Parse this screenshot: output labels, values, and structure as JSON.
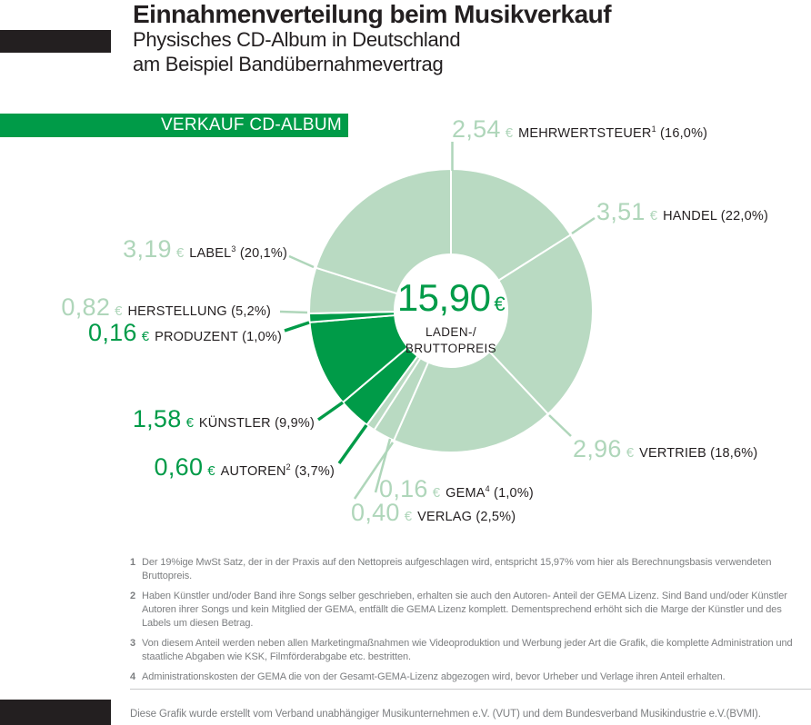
{
  "header": {
    "title": "Einnahmenverteilung beim Musikverkauf",
    "subtitle_line1": "Physisches CD-Album in Deutschland",
    "subtitle_line2": "am Beispiel Bandübernahmevertrag"
  },
  "band": {
    "label": "VERKAUF CD-ALBUM"
  },
  "colors": {
    "dark_green": "#009B48",
    "light_green_fill": "#B9DAC2",
    "light_green_text": "#AFD6BA",
    "text_black": "#231F20",
    "gray_text": "#7C7E80",
    "accent_bar": "#231F20"
  },
  "chart_data": {
    "type": "pie",
    "title": "VERKAUF CD-ALBUM",
    "unit": "€",
    "total_value": "15,90",
    "center": {
      "value": "15,90",
      "currency": "€",
      "label_line1": "LADEN-/",
      "label_line2": "BRUTTOPREIS"
    },
    "segments": [
      {
        "key": "mehrwertsteuer",
        "name": "MEHRWERTSTEUER",
        "footnote_ref": "1",
        "value": "2,54",
        "pct": "16,0%",
        "pct_num": 16.0,
        "shade": "light"
      },
      {
        "key": "handel",
        "name": "HANDEL",
        "footnote_ref": "",
        "value": "3,51",
        "pct": "22,0%",
        "pct_num": 22.0,
        "shade": "light"
      },
      {
        "key": "vertrieb",
        "name": "VERTRIEB",
        "footnote_ref": "",
        "value": "2,96",
        "pct": "18,6%",
        "pct_num": 18.6,
        "shade": "light"
      },
      {
        "key": "verlag",
        "name": "VERLAG",
        "footnote_ref": "",
        "value": "0,40",
        "pct": "2,5%",
        "pct_num": 2.5,
        "shade": "light"
      },
      {
        "key": "gema",
        "name": "GEMA",
        "footnote_ref": "4",
        "value": "0,16",
        "pct": "1,0%",
        "pct_num": 1.0,
        "shade": "light"
      },
      {
        "key": "autoren",
        "name": "AUTOREN",
        "footnote_ref": "2",
        "value": "0,60",
        "pct": "3,7%",
        "pct_num": 3.7,
        "shade": "dark"
      },
      {
        "key": "kuenstler",
        "name": "KÜNSTLER",
        "footnote_ref": "",
        "value": "1,58",
        "pct": "9,9%",
        "pct_num": 9.9,
        "shade": "dark"
      },
      {
        "key": "produzent",
        "name": "PRODUZENT",
        "footnote_ref": "",
        "value": "0,16",
        "pct": "1,0%",
        "pct_num": 1.0,
        "shade": "dark"
      },
      {
        "key": "herstellung",
        "name": "HERSTELLUNG",
        "footnote_ref": "",
        "value": "0,82",
        "pct": "5,2%",
        "pct_num": 5.2,
        "shade": "light"
      },
      {
        "key": "label",
        "name": "LABEL",
        "footnote_ref": "3",
        "value": "3,19",
        "pct": "20,1%",
        "pct_num": 20.1,
        "shade": "light"
      }
    ]
  },
  "footnotes": [
    {
      "marker": "1",
      "text": "Der 19%ige MwSt Satz, der in der Praxis auf den Nettopreis aufgeschlagen wird, entspricht 15,97% vom hier als Berechnungsbasis verwendeten Bruttopreis."
    },
    {
      "marker": "2",
      "text": "Haben Künstler und/oder Band ihre Songs selber geschrieben, erhalten sie auch den Autoren- Anteil der GEMA Lizenz. Sind Band und/oder Künstler Autoren ihrer Songs und kein Mitglied der GEMA, entfällt die GEMA Lizenz komplett. Dementsprechend erhöht sich die Marge der Künstler und des Labels um diesen Betrag."
    },
    {
      "marker": "3",
      "text": "Von diesem Anteil werden neben allen Marketingmaßnahmen wie Videoproduktion und Werbung jeder Art die Grafik, die komplette Administration und staatliche Abgaben wie KSK, Filmförderabgabe etc. bestritten."
    },
    {
      "marker": "4",
      "text": "Administrationskosten der GEMA die von der Gesamt-GEMA-Lizenz abgezogen wird, bevor Urheber und Verlage ihren Anteil erhalten."
    }
  ],
  "footer": {
    "credit": "Diese Grafik wurde erstellt vom Verband unabhängiger Musikunternehmen e.V. (VUT) und dem Bundesverband Musikindustrie e.V.(BVMI)."
  }
}
